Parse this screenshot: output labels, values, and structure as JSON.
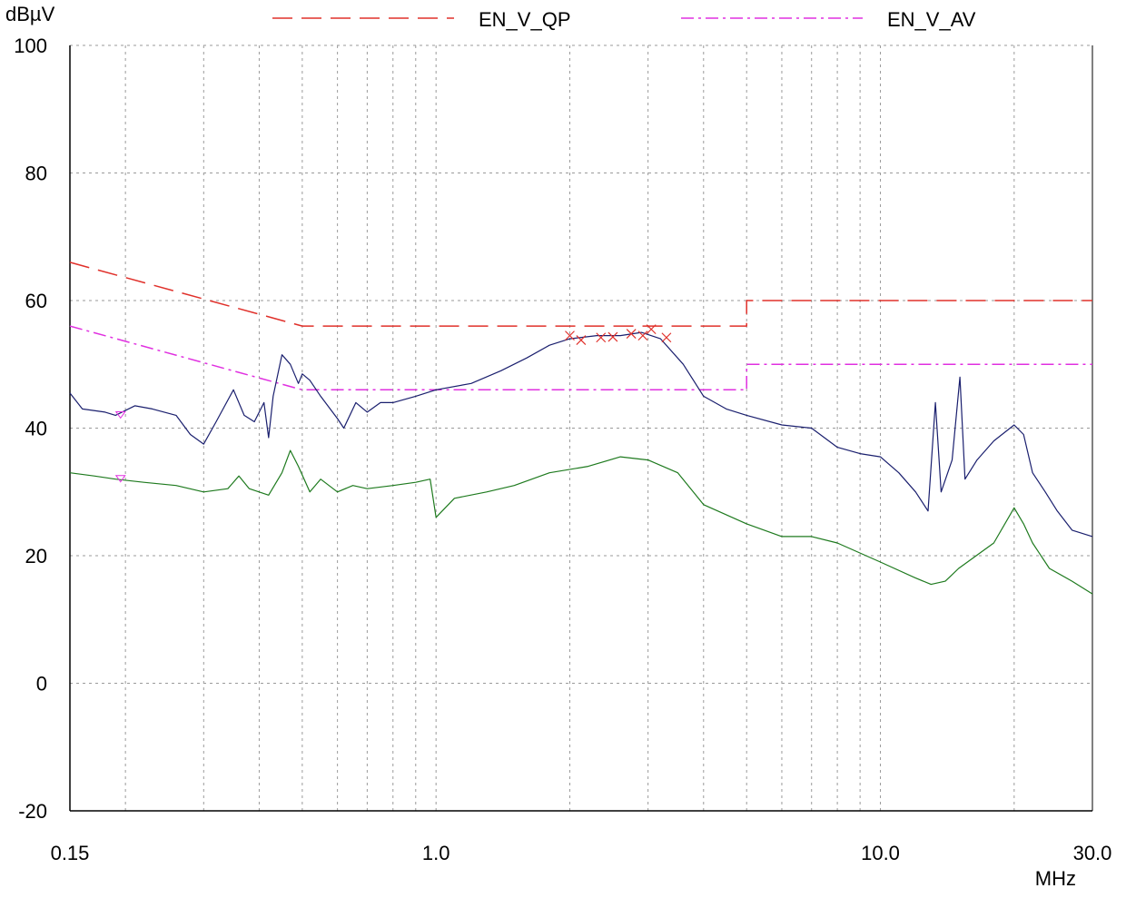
{
  "chart_data": {
    "type": "line",
    "ylabel": "dBµV",
    "xlabel": "MHz",
    "x_scale": "log",
    "xlim": [
      0.15,
      30.0
    ],
    "ylim": [
      -20,
      100
    ],
    "grid": true,
    "legend_placement": "top",
    "x_tick_labels": [
      {
        "value": 0.15,
        "label": "0.15"
      },
      {
        "value": 1.0,
        "label": "1.0"
      },
      {
        "value": 10.0,
        "label": "10.0"
      },
      {
        "value": 30.0,
        "label": "30.0"
      }
    ],
    "y_ticks": [
      -20,
      0,
      20,
      40,
      60,
      80,
      100
    ],
    "x_minor_grid": [
      0.2,
      0.3,
      0.4,
      0.5,
      0.6,
      0.7,
      0.8,
      0.9,
      2,
      3,
      4,
      5,
      6,
      7,
      8,
      9,
      20
    ],
    "series": [
      {
        "name": "EN_V_QP",
        "kind": "limit",
        "style": "dashed",
        "color": "#e0302a",
        "points": [
          [
            0.15,
            66
          ],
          [
            0.5,
            56
          ],
          [
            5.0,
            56
          ],
          [
            5.0,
            60
          ],
          [
            30.0,
            60
          ]
        ]
      },
      {
        "name": "EN_V_AV",
        "kind": "limit",
        "style": "dashdot",
        "color": "#e030e0",
        "points": [
          [
            0.15,
            56
          ],
          [
            0.5,
            46
          ],
          [
            5.0,
            46
          ],
          [
            5.0,
            50
          ],
          [
            30.0,
            50
          ]
        ]
      },
      {
        "kind": "peak-trace",
        "color": "#1a1f6e",
        "points": [
          [
            0.15,
            45.5
          ],
          [
            0.16,
            43
          ],
          [
            0.18,
            42.5
          ],
          [
            0.19,
            42
          ],
          [
            0.21,
            43.5
          ],
          [
            0.23,
            43
          ],
          [
            0.26,
            42
          ],
          [
            0.28,
            39
          ],
          [
            0.3,
            37.5
          ],
          [
            0.32,
            41
          ],
          [
            0.35,
            46
          ],
          [
            0.37,
            42
          ],
          [
            0.39,
            41
          ],
          [
            0.41,
            44
          ],
          [
            0.42,
            38.5
          ],
          [
            0.43,
            45
          ],
          [
            0.45,
            51.5
          ],
          [
            0.47,
            50
          ],
          [
            0.49,
            47
          ],
          [
            0.5,
            48.5
          ],
          [
            0.52,
            47.5
          ],
          [
            0.55,
            45
          ],
          [
            0.6,
            41.5
          ],
          [
            0.62,
            40
          ],
          [
            0.66,
            44
          ],
          [
            0.7,
            42.5
          ],
          [
            0.75,
            44
          ],
          [
            0.8,
            44
          ],
          [
            0.9,
            45
          ],
          [
            1.0,
            46
          ],
          [
            1.2,
            47
          ],
          [
            1.4,
            49
          ],
          [
            1.6,
            51
          ],
          [
            1.8,
            53
          ],
          [
            2.0,
            54
          ],
          [
            2.3,
            54.5
          ],
          [
            2.6,
            54.5
          ],
          [
            2.9,
            55
          ],
          [
            3.2,
            54
          ],
          [
            3.6,
            50
          ],
          [
            4.0,
            45
          ],
          [
            4.5,
            43
          ],
          [
            5.0,
            42
          ],
          [
            6.0,
            40.5
          ],
          [
            7.0,
            40
          ],
          [
            8.0,
            37
          ],
          [
            9.0,
            36
          ],
          [
            10.0,
            35.5
          ],
          [
            11.0,
            33
          ],
          [
            12.0,
            30
          ],
          [
            12.8,
            27
          ],
          [
            13.3,
            44
          ],
          [
            13.7,
            30
          ],
          [
            14.5,
            35
          ],
          [
            15.1,
            48
          ],
          [
            15.5,
            32
          ],
          [
            16.5,
            35
          ],
          [
            18.0,
            38
          ],
          [
            20.0,
            40.5
          ],
          [
            21.0,
            39
          ],
          [
            22.0,
            33
          ],
          [
            23.5,
            30
          ],
          [
            25.0,
            27
          ],
          [
            27.0,
            24
          ],
          [
            30.0,
            23
          ]
        ]
      },
      {
        "kind": "average-trace",
        "color": "#1e7a1e",
        "points": [
          [
            0.15,
            33
          ],
          [
            0.17,
            32.5
          ],
          [
            0.19,
            32
          ],
          [
            0.22,
            31.5
          ],
          [
            0.26,
            31
          ],
          [
            0.3,
            30
          ],
          [
            0.34,
            30.5
          ],
          [
            0.36,
            32.5
          ],
          [
            0.38,
            30.5
          ],
          [
            0.42,
            29.5
          ],
          [
            0.45,
            33
          ],
          [
            0.47,
            36.5
          ],
          [
            0.49,
            34
          ],
          [
            0.52,
            30
          ],
          [
            0.55,
            32
          ],
          [
            0.6,
            30
          ],
          [
            0.65,
            31
          ],
          [
            0.7,
            30.5
          ],
          [
            0.8,
            31
          ],
          [
            0.9,
            31.5
          ],
          [
            0.97,
            32
          ],
          [
            1.0,
            26
          ],
          [
            1.1,
            29
          ],
          [
            1.3,
            30
          ],
          [
            1.5,
            31
          ],
          [
            1.8,
            33
          ],
          [
            2.2,
            34
          ],
          [
            2.6,
            35.5
          ],
          [
            3.0,
            35
          ],
          [
            3.5,
            33
          ],
          [
            4.0,
            28
          ],
          [
            5.0,
            25
          ],
          [
            6.0,
            23
          ],
          [
            7.0,
            23
          ],
          [
            8.0,
            22
          ],
          [
            10.0,
            19
          ],
          [
            12.0,
            16.5
          ],
          [
            13.0,
            15.5
          ],
          [
            14.0,
            16
          ],
          [
            15.0,
            18
          ],
          [
            18.0,
            22
          ],
          [
            20.0,
            27.5
          ],
          [
            21.0,
            25
          ],
          [
            22.0,
            22
          ],
          [
            24.0,
            18
          ],
          [
            27.0,
            16
          ],
          [
            30.0,
            14
          ]
        ]
      }
    ],
    "peak_markers": [
      {
        "symbol": "x",
        "color": "#e0302a",
        "points": [
          [
            2.0,
            54.5
          ],
          [
            2.12,
            53.8
          ],
          [
            2.35,
            54.2
          ],
          [
            2.5,
            54.3
          ],
          [
            2.75,
            54.8
          ],
          [
            2.92,
            54.5
          ],
          [
            3.05,
            55.5
          ],
          [
            3.3,
            54.2
          ]
        ]
      },
      {
        "symbol": "triangle-down",
        "color": "#e030e0",
        "points": [
          [
            0.195,
            42
          ],
          [
            0.195,
            32
          ]
        ]
      }
    ]
  }
}
